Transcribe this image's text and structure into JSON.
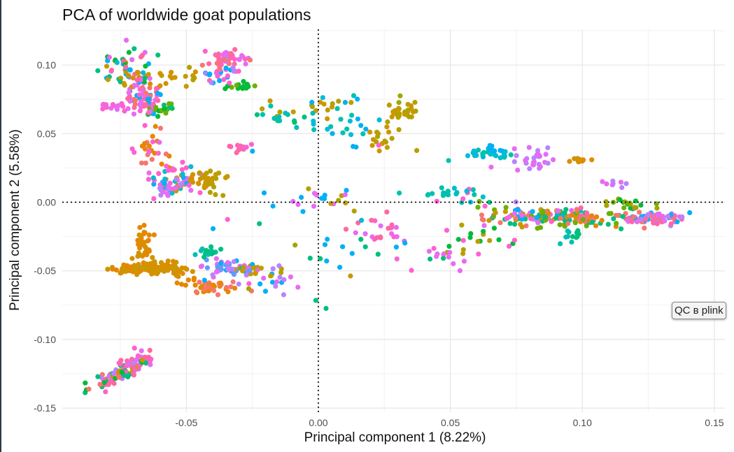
{
  "chart_data": {
    "type": "scatter",
    "title": "PCA of worldwide goat populations",
    "xlabel": "Principal component 1 (8.22%)",
    "ylabel": "Principal component 2 (5.58%)",
    "xlim": [
      -0.097,
      0.154
    ],
    "ylim": [
      -0.153,
      0.126
    ],
    "x_ticks": [
      -0.05,
      0.0,
      0.05,
      0.1,
      0.15
    ],
    "x_tick_labels": [
      "-0.05",
      "0.00",
      "0.05",
      "0.10",
      "0.15"
    ],
    "y_ticks": [
      -0.15,
      -0.1,
      -0.05,
      0.0,
      0.05,
      0.1
    ],
    "y_tick_labels": [
      "-0.15",
      "-0.10",
      "-0.05",
      "0.00",
      "0.05",
      "0.10"
    ],
    "grid": true,
    "legend": "none",
    "reference_lines": {
      "x": 0,
      "y": 0,
      "style": "dotted"
    },
    "colors": [
      "#F8766D",
      "#E58700",
      "#C99800",
      "#A3A500",
      "#6BB100",
      "#00BA38",
      "#00BF7D",
      "#00C0AF",
      "#00BCD8",
      "#00B0F6",
      "#619CFF",
      "#B983FF",
      "#E76BF3",
      "#FD61D1",
      "#FF67A4",
      "#D39200",
      "#B79F00",
      "#00BD5C"
    ],
    "point_clusters": [
      {
        "cx": -0.075,
        "cy": -0.125,
        "sx": 0.0055,
        "sy": 0.0065,
        "n": 90,
        "rho": 0.85,
        "colors": [
          0,
          2,
          5,
          6,
          11,
          13,
          14
        ]
      },
      {
        "cx": -0.067,
        "cy": -0.116,
        "sx": 0.003,
        "sy": 0.003,
        "n": 30,
        "colors": [
          12,
          13,
          14
        ]
      },
      {
        "cx": -0.063,
        "cy": -0.048,
        "sx": 0.007,
        "sy": 0.0025,
        "n": 140,
        "colors": [
          15,
          15,
          1,
          2
        ]
      },
      {
        "cx": -0.066,
        "cy": -0.03,
        "sx": 0.002,
        "sy": 0.006,
        "n": 35,
        "colors": [
          15,
          1
        ]
      },
      {
        "cx": -0.04,
        "cy": -0.062,
        "sx": 0.005,
        "sy": 0.003,
        "n": 45,
        "colors": [
          0,
          1
        ]
      },
      {
        "cx": -0.033,
        "cy": -0.048,
        "sx": 0.006,
        "sy": 0.004,
        "n": 50,
        "colors": [
          11,
          12,
          9,
          10
        ]
      },
      {
        "cx": -0.041,
        "cy": -0.036,
        "sx": 0.003,
        "sy": 0.002,
        "n": 15,
        "colors": [
          6,
          7
        ]
      },
      {
        "cx": -0.022,
        "cy": -0.05,
        "sx": 0.005,
        "sy": 0.002,
        "n": 18,
        "colors": [
          16,
          2,
          15
        ]
      },
      {
        "cx": -0.015,
        "cy": -0.06,
        "sx": 0.004,
        "sy": 0.004,
        "n": 12,
        "colors": [
          12,
          9,
          11
        ]
      },
      {
        "cx": -0.079,
        "cy": 0.07,
        "sx": 0.003,
        "sy": 0.0015,
        "n": 14,
        "colors": [
          12,
          13
        ]
      },
      {
        "cx": -0.066,
        "cy": 0.078,
        "sx": 0.003,
        "sy": 0.007,
        "n": 70,
        "colors": [
          14,
          12,
          13,
          0,
          9
        ]
      },
      {
        "cx": -0.072,
        "cy": 0.1,
        "sx": 0.005,
        "sy": 0.007,
        "n": 45,
        "colors": [
          14,
          12,
          8,
          9,
          6,
          2,
          5
        ]
      },
      {
        "cx": -0.06,
        "cy": 0.067,
        "sx": 0.003,
        "sy": 0.003,
        "n": 20,
        "colors": [
          5,
          6,
          4
        ]
      },
      {
        "cx": -0.06,
        "cy": 0.092,
        "sx": 0.01,
        "sy": 0.004,
        "n": 28,
        "colors": [
          2,
          16,
          15
        ]
      },
      {
        "cx": -0.065,
        "cy": 0.04,
        "sx": 0.003,
        "sy": 0.01,
        "n": 28,
        "colors": [
          13,
          12,
          0,
          1
        ]
      },
      {
        "cx": -0.055,
        "cy": 0.022,
        "sx": 0.003,
        "sy": 0.004,
        "n": 14,
        "colors": [
          1,
          15,
          13
        ]
      },
      {
        "cx": -0.055,
        "cy": 0.012,
        "sx": 0.005,
        "sy": 0.005,
        "n": 55,
        "colors": [
          13,
          12,
          9,
          11,
          8
        ]
      },
      {
        "cx": -0.043,
        "cy": 0.016,
        "sx": 0.004,
        "sy": 0.005,
        "n": 45,
        "colors": [
          15,
          2,
          16
        ]
      },
      {
        "cx": -0.034,
        "cy": 0.105,
        "sx": 0.004,
        "sy": 0.003,
        "n": 38,
        "colors": [
          14,
          0,
          12,
          13
        ]
      },
      {
        "cx": -0.038,
        "cy": 0.095,
        "sx": 0.003,
        "sy": 0.004,
        "n": 30,
        "colors": [
          13,
          9,
          11,
          14
        ]
      },
      {
        "cx": -0.03,
        "cy": 0.085,
        "sx": 0.003,
        "sy": 0.002,
        "n": 14,
        "colors": [
          5,
          4
        ]
      },
      {
        "cx": -0.03,
        "cy": 0.04,
        "sx": 0.002,
        "sy": 0.002,
        "n": 12,
        "colors": [
          14,
          13
        ]
      },
      {
        "cx": -0.015,
        "cy": 0.063,
        "sx": 0.006,
        "sy": 0.005,
        "n": 18,
        "colors": [
          7,
          6,
          16
        ]
      },
      {
        "cx": 0.032,
        "cy": 0.065,
        "sx": 0.003,
        "sy": 0.004,
        "n": 30,
        "colors": [
          16,
          2,
          3
        ]
      },
      {
        "cx": 0.024,
        "cy": 0.045,
        "sx": 0.004,
        "sy": 0.006,
        "n": 16,
        "colors": [
          16,
          2
        ]
      },
      {
        "cx": 0.0,
        "cy": 0.07,
        "sx": 0.006,
        "sy": 0.003,
        "n": 12,
        "colors": [
          16,
          2
        ]
      },
      {
        "cx": 0.01,
        "cy": 0.06,
        "sx": 0.008,
        "sy": 0.01,
        "n": 25,
        "colors": [
          8,
          9,
          7
        ]
      },
      {
        "cx": 0.065,
        "cy": 0.036,
        "sx": 0.004,
        "sy": 0.002,
        "n": 35,
        "colors": [
          8,
          7,
          9
        ]
      },
      {
        "cx": 0.082,
        "cy": 0.03,
        "sx": 0.004,
        "sy": 0.005,
        "n": 30,
        "colors": [
          11,
          12
        ]
      },
      {
        "cx": 0.099,
        "cy": 0.03,
        "sx": 0.002,
        "sy": 0.001,
        "n": 12,
        "colors": [
          1,
          15
        ]
      },
      {
        "cx": 0.052,
        "cy": 0.005,
        "sx": 0.01,
        "sy": 0.003,
        "n": 25,
        "colors": [
          8,
          7,
          13
        ]
      },
      {
        "cx": 0.082,
        "cy": -0.01,
        "sx": 0.012,
        "sy": 0.004,
        "n": 120,
        "colors": [
          0,
          11,
          9,
          13,
          2,
          6,
          4,
          12
        ]
      },
      {
        "cx": 0.1,
        "cy": -0.012,
        "sx": 0.008,
        "sy": 0.004,
        "n": 60,
        "colors": [
          14,
          0,
          1,
          6,
          4
        ]
      },
      {
        "cx": 0.128,
        "cy": -0.012,
        "sx": 0.006,
        "sy": 0.003,
        "n": 70,
        "colors": [
          0,
          14,
          11,
          12,
          9
        ]
      },
      {
        "cx": 0.115,
        "cy": -0.002,
        "sx": 0.005,
        "sy": 0.002,
        "n": 20,
        "colors": [
          4,
          5,
          3
        ]
      },
      {
        "cx": 0.113,
        "cy": 0.013,
        "sx": 0.002,
        "sy": 0.0015,
        "n": 8,
        "colors": [
          12,
          11
        ]
      },
      {
        "cx": 0.06,
        "cy": -0.025,
        "sx": 0.008,
        "sy": 0.005,
        "n": 20,
        "colors": [
          13,
          5,
          16
        ]
      },
      {
        "cx": 0.02,
        "cy": -0.02,
        "sx": 0.006,
        "sy": 0.005,
        "n": 20,
        "colors": [
          13,
          14,
          12
        ]
      },
      {
        "cx": 0.004,
        "cy": 0.005,
        "sx": 0.008,
        "sy": 0.008,
        "n": 18,
        "colors": [
          8,
          16,
          12,
          9
        ]
      },
      {
        "cx": 0.025,
        "cy": -0.035,
        "sx": 0.008,
        "sy": 0.006,
        "n": 14,
        "colors": [
          6,
          9,
          13
        ]
      },
      {
        "cx": 0.095,
        "cy": -0.025,
        "sx": 0.004,
        "sy": 0.002,
        "n": 12,
        "colors": [
          6,
          7
        ]
      },
      {
        "cx": 0.05,
        "cy": -0.04,
        "sx": 0.006,
        "sy": 0.005,
        "n": 12,
        "colors": [
          13,
          12
        ]
      },
      {
        "cx": -0.01,
        "cy": -0.02,
        "sx": 0.02,
        "sy": 0.04,
        "n": 25,
        "colors": [
          9,
          13,
          6,
          3,
          2
        ]
      }
    ]
  },
  "overlay_button": {
    "label": "QC в plink"
  }
}
